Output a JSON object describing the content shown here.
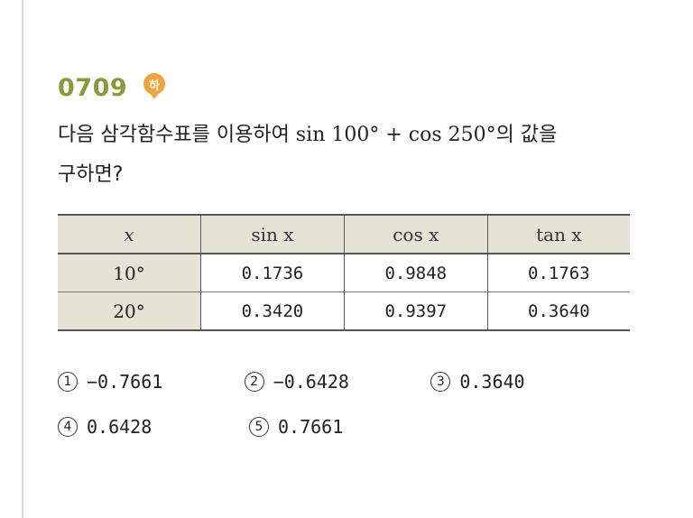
{
  "problem": {
    "number": "0709",
    "difficulty": "하",
    "question_line1_pre": "다음 삼각함수표를 이용하여 ",
    "question_math": "sin 100° + cos 250°",
    "question_line1_post": "의 값을",
    "question_line2": "구하면?"
  },
  "table": {
    "headers": [
      "x",
      "sin x",
      "cos x",
      "tan x"
    ],
    "rows": [
      {
        "angle": "10°",
        "sin": "0.1736",
        "cos": "0.9848",
        "tan": "0.1763"
      },
      {
        "angle": "20°",
        "sin": "0.3420",
        "cos": "0.9397",
        "tan": "0.3640"
      }
    ]
  },
  "choices": [
    {
      "num": "1",
      "value": "−0.7661"
    },
    {
      "num": "2",
      "value": "−0.6428"
    },
    {
      "num": "3",
      "value": "0.3640"
    },
    {
      "num": "4",
      "value": "0.6428"
    },
    {
      "num": "5",
      "value": "0.7661"
    }
  ]
}
